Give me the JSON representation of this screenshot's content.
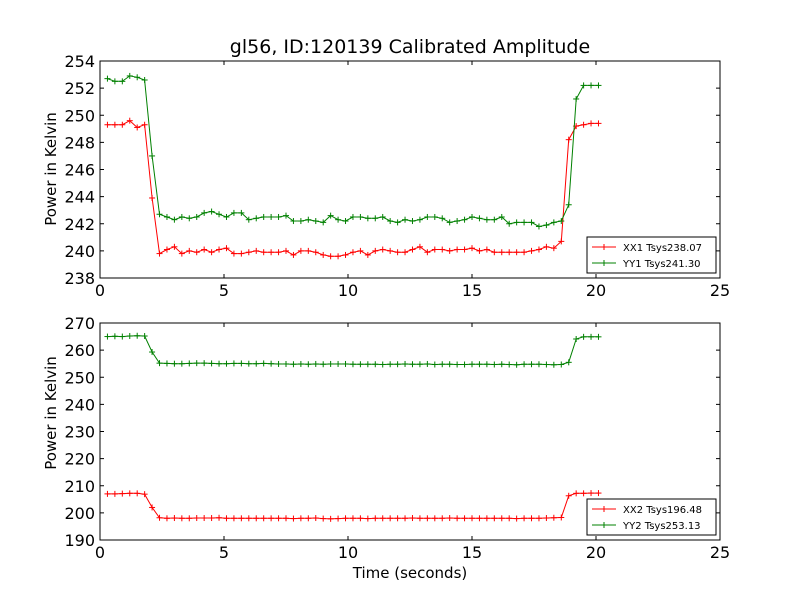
{
  "chart_data": [
    {
      "type": "line",
      "title": "gl56, ID:120139 Calibrated Amplitude",
      "xlabel": "",
      "ylabel": "Power in Kelvin",
      "xlim": [
        0,
        25
      ],
      "ylim": [
        238,
        254
      ],
      "xticks": [
        "0",
        "5",
        "10",
        "15",
        "20",
        "25"
      ],
      "yticks": [
        "238",
        "240",
        "242",
        "244",
        "246",
        "248",
        "250",
        "252",
        "254"
      ],
      "grid": false,
      "legend_position": "bottom-right",
      "x": [
        0.3,
        0.6,
        0.9,
        1.2,
        1.5,
        1.8,
        2.1,
        2.4,
        2.7,
        3.0,
        3.3,
        3.6,
        3.9,
        4.2,
        4.5,
        4.8,
        5.1,
        5.4,
        5.7,
        6.0,
        6.3,
        6.6,
        6.9,
        7.2,
        7.5,
        7.8,
        8.1,
        8.4,
        8.7,
        9.0,
        9.3,
        9.6,
        9.9,
        10.2,
        10.5,
        10.8,
        11.1,
        11.4,
        11.7,
        12.0,
        12.3,
        12.6,
        12.9,
        13.2,
        13.5,
        13.8,
        14.1,
        14.4,
        14.7,
        15.0,
        15.3,
        15.6,
        15.9,
        16.2,
        16.5,
        16.8,
        17.1,
        17.4,
        17.7,
        18.0,
        18.3,
        18.6,
        18.9,
        19.2,
        19.5,
        19.8,
        20.1
      ],
      "series": [
        {
          "name": "XX1 Tsys238.07",
          "color": "#ff0000",
          "values": [
            249.3,
            249.3,
            249.3,
            249.6,
            249.1,
            249.3,
            243.9,
            239.8,
            240.1,
            240.3,
            239.8,
            240.0,
            239.9,
            240.1,
            239.9,
            240.1,
            240.2,
            239.8,
            239.8,
            239.9,
            240.0,
            239.9,
            239.9,
            239.9,
            240.0,
            239.7,
            240.0,
            240.0,
            239.9,
            239.7,
            239.6,
            239.6,
            239.7,
            239.9,
            240.0,
            239.7,
            240.0,
            240.1,
            240.0,
            239.9,
            239.9,
            240.1,
            240.3,
            239.9,
            240.1,
            240.1,
            240.0,
            240.1,
            240.1,
            240.2,
            240.0,
            240.1,
            239.9,
            239.9,
            239.9,
            239.9,
            239.9,
            240.0,
            240.1,
            240.3,
            240.2,
            240.7,
            248.2,
            249.2,
            249.3,
            249.4,
            249.4
          ]
        },
        {
          "name": "YY1 Tsys241.30",
          "color": "#008000",
          "values": [
            252.7,
            252.5,
            252.5,
            252.9,
            252.8,
            252.6,
            247.0,
            242.7,
            242.5,
            242.3,
            242.5,
            242.4,
            242.5,
            242.8,
            242.9,
            242.7,
            242.5,
            242.8,
            242.8,
            242.3,
            242.4,
            242.5,
            242.5,
            242.5,
            242.6,
            242.2,
            242.2,
            242.3,
            242.2,
            242.1,
            242.6,
            242.3,
            242.2,
            242.5,
            242.5,
            242.4,
            242.4,
            242.5,
            242.2,
            242.1,
            242.3,
            242.2,
            242.3,
            242.5,
            242.5,
            242.4,
            242.1,
            242.2,
            242.3,
            242.5,
            242.4,
            242.3,
            242.3,
            242.5,
            242.0,
            242.1,
            242.1,
            242.1,
            241.8,
            241.9,
            242.1,
            242.2,
            243.4,
            251.2,
            252.2,
            252.2,
            252.2
          ]
        }
      ]
    },
    {
      "type": "line",
      "title": "",
      "xlabel": "Time (seconds)",
      "ylabel": "Power in Kelvin",
      "xlim": [
        0,
        25
      ],
      "ylim": [
        190,
        270
      ],
      "xticks": [
        "0",
        "5",
        "10",
        "15",
        "20",
        "25"
      ],
      "yticks": [
        "190",
        "200",
        "210",
        "220",
        "230",
        "240",
        "250",
        "260",
        "270"
      ],
      "grid": false,
      "legend_position": "bottom-right",
      "x": [
        0.3,
        0.6,
        0.9,
        1.2,
        1.5,
        1.8,
        2.1,
        2.4,
        2.7,
        3.0,
        3.3,
        3.6,
        3.9,
        4.2,
        4.5,
        4.8,
        5.1,
        5.4,
        5.7,
        6.0,
        6.3,
        6.6,
        6.9,
        7.2,
        7.5,
        7.8,
        8.1,
        8.4,
        8.7,
        9.0,
        9.3,
        9.6,
        9.9,
        10.2,
        10.5,
        10.8,
        11.1,
        11.4,
        11.7,
        12.0,
        12.3,
        12.6,
        12.9,
        13.2,
        13.5,
        13.8,
        14.1,
        14.4,
        14.7,
        15.0,
        15.3,
        15.6,
        15.9,
        16.2,
        16.5,
        16.8,
        17.1,
        17.4,
        17.7,
        18.0,
        18.3,
        18.6,
        18.9,
        19.2,
        19.5,
        19.8,
        20.1
      ],
      "series": [
        {
          "name": "XX2 Tsys196.48",
          "color": "#ff0000",
          "values": [
            207.0,
            207.0,
            207.1,
            207.2,
            207.2,
            206.9,
            202.0,
            198.2,
            198.0,
            198.1,
            198.0,
            198.0,
            198.1,
            198.1,
            198.1,
            198.2,
            198.0,
            198.0,
            198.0,
            198.0,
            198.0,
            198.0,
            198.0,
            198.0,
            198.0,
            197.9,
            198.0,
            198.0,
            198.1,
            197.9,
            197.8,
            197.9,
            198.0,
            198.0,
            198.0,
            197.9,
            198.0,
            198.0,
            198.0,
            198.0,
            198.0,
            198.1,
            198.0,
            198.0,
            198.0,
            198.0,
            198.1,
            198.0,
            198.0,
            198.0,
            198.0,
            198.0,
            198.0,
            198.0,
            198.0,
            197.9,
            198.0,
            198.0,
            198.0,
            198.1,
            198.2,
            198.3,
            206.3,
            207.2,
            207.2,
            207.3,
            207.3
          ]
        },
        {
          "name": "YY2 Tsys253.13",
          "color": "#008000",
          "values": [
            265.0,
            265.1,
            265.0,
            265.2,
            265.3,
            265.2,
            259.3,
            255.2,
            255.1,
            255.0,
            255.0,
            255.1,
            255.2,
            255.2,
            255.1,
            255.0,
            255.0,
            255.1,
            255.1,
            255.0,
            255.0,
            255.1,
            255.0,
            254.9,
            254.9,
            254.8,
            254.9,
            254.8,
            254.9,
            254.8,
            254.9,
            254.9,
            254.9,
            254.8,
            254.8,
            254.8,
            254.8,
            254.7,
            254.8,
            254.8,
            254.9,
            254.8,
            254.8,
            254.9,
            254.7,
            254.8,
            254.8,
            254.7,
            254.7,
            254.8,
            254.8,
            254.8,
            254.7,
            254.8,
            254.7,
            254.6,
            254.8,
            254.8,
            254.8,
            254.7,
            254.6,
            254.7,
            255.5,
            264.1,
            264.9,
            264.9,
            264.9
          ]
        }
      ]
    }
  ]
}
